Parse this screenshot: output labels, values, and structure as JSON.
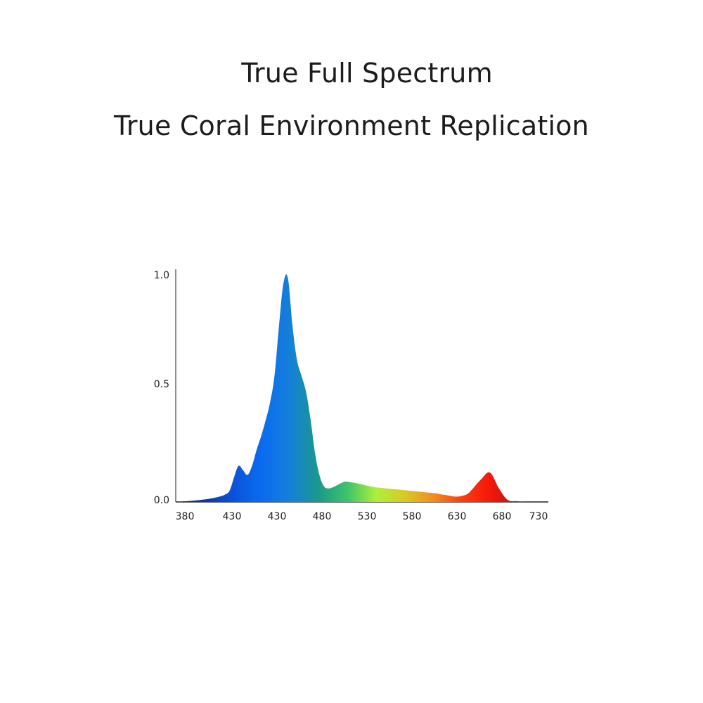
{
  "header": {
    "line1": "True Full Spectrum",
    "line2": "True Coral Environment Replication"
  },
  "chart_data": {
    "type": "area",
    "title": "",
    "xlabel": "",
    "ylabel": "",
    "x_tick_labels": [
      "380",
      "430",
      "430",
      "480",
      "530",
      "580",
      "630",
      "680",
      "730"
    ],
    "y_tick_labels": [
      "1.0",
      "0.5",
      "0.0"
    ],
    "ylim": [
      0,
      1
    ],
    "xlim": [
      370,
      785
    ],
    "grid": false,
    "legend": "none",
    "fill": "spectral gradient (blue to red)",
    "series": [
      {
        "x": [
          370,
          380,
          390,
          400,
          410,
          420,
          425,
          430,
          435,
          440,
          445,
          450,
          455,
          460,
          465,
          470,
          475,
          480,
          485,
          490,
          495,
          500,
          505,
          510,
          515,
          520,
          525,
          530,
          535,
          540,
          545,
          550,
          555,
          560,
          570,
          580,
          590,
          600,
          610,
          620,
          630,
          640,
          650,
          660,
          665,
          670,
          675,
          680,
          685,
          690,
          695,
          700,
          710,
          720,
          730,
          740,
          750,
          760
        ],
        "values": [
          0.0,
          0.003,
          0.006,
          0.01,
          0.016,
          0.025,
          0.033,
          0.05,
          0.11,
          0.16,
          0.14,
          0.12,
          0.16,
          0.23,
          0.29,
          0.36,
          0.44,
          0.56,
          0.78,
          0.97,
          0.99,
          0.78,
          0.63,
          0.56,
          0.49,
          0.37,
          0.22,
          0.12,
          0.07,
          0.06,
          0.065,
          0.075,
          0.085,
          0.09,
          0.084,
          0.075,
          0.066,
          0.062,
          0.058,
          0.054,
          0.05,
          0.046,
          0.042,
          0.038,
          0.034,
          0.031,
          0.028,
          0.024,
          0.024,
          0.028,
          0.036,
          0.055,
          0.1,
          0.13,
          0.06,
          0.008,
          0.003,
          0.0
        ]
      }
    ],
    "colors": {
      "gradient_stops": [
        "#1f2a84",
        "#0a36a8",
        "#0a52d8",
        "#0a6cf0",
        "#1580d8",
        "#1a9a8a",
        "#3fc36a",
        "#aef03a",
        "#d9c824",
        "#f28c1c",
        "#ff3a10",
        "#f2180a",
        "#b51414",
        "#8e1a1a"
      ]
    }
  }
}
